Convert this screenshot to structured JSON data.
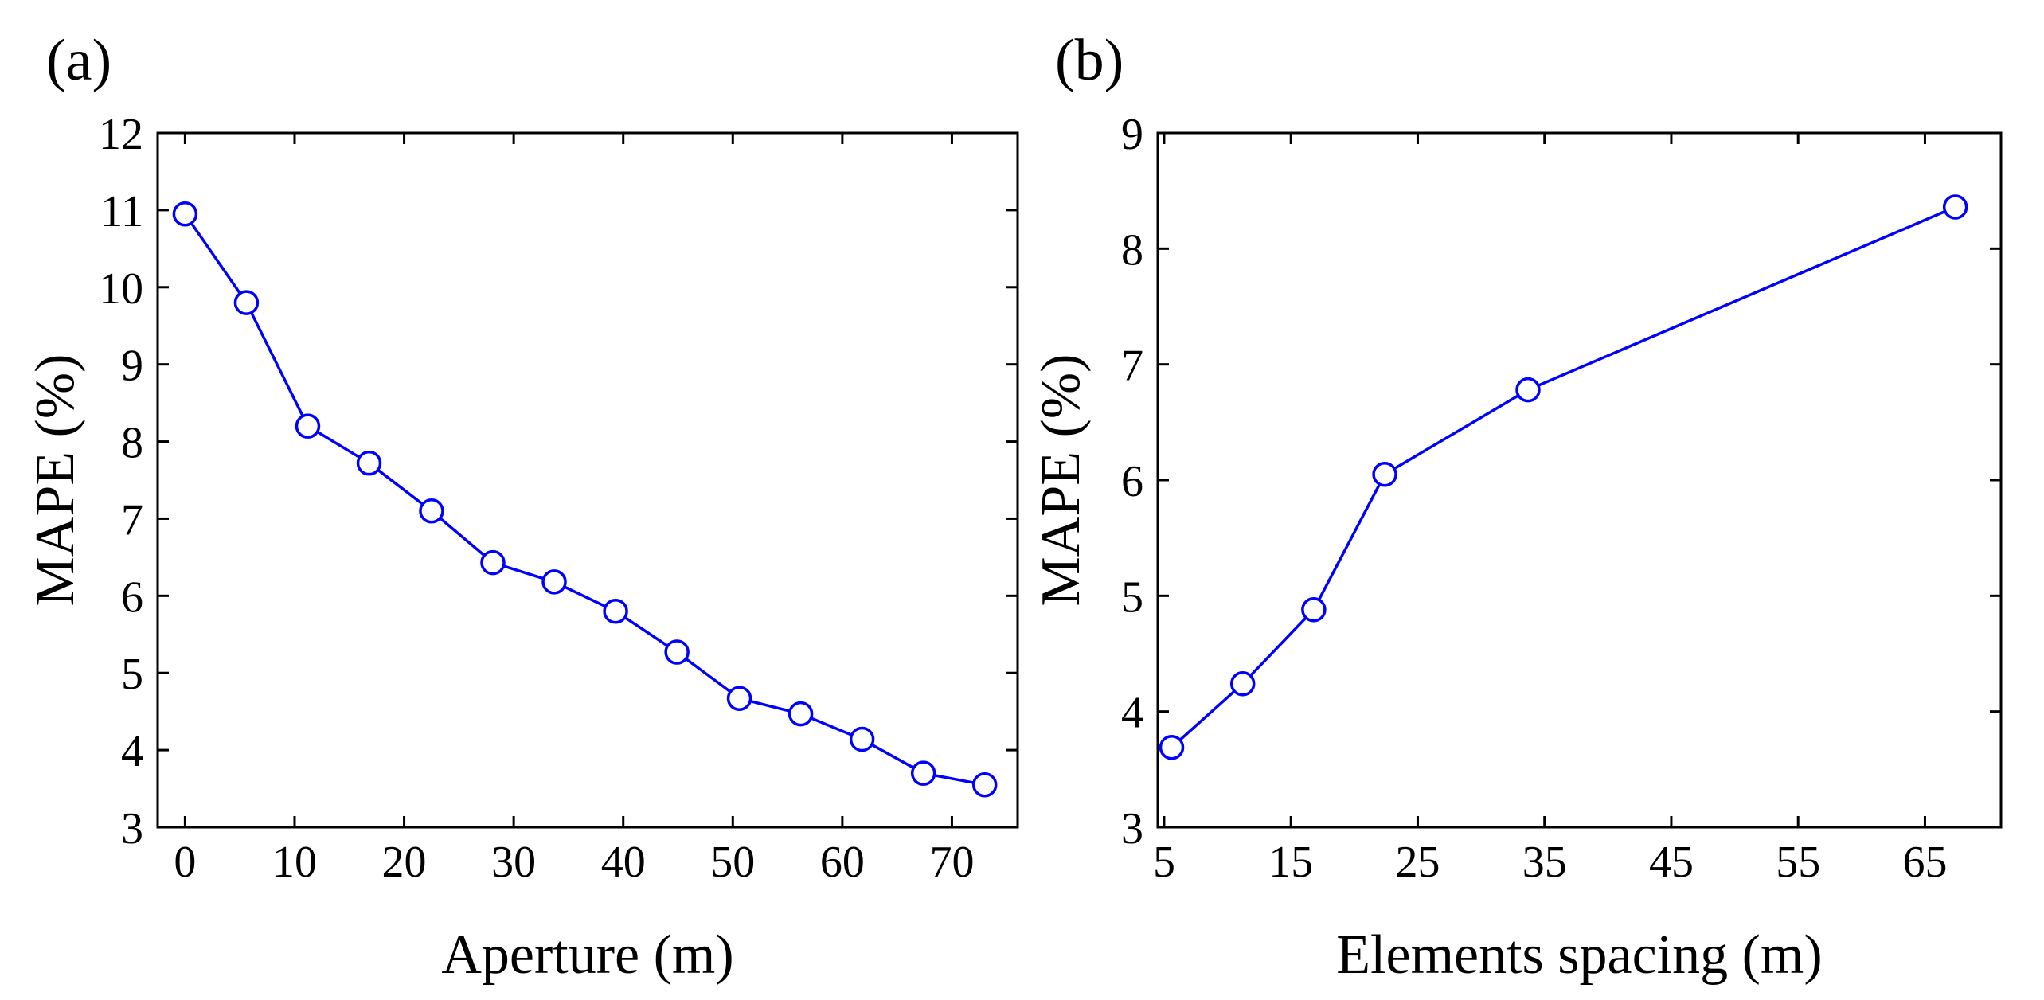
{
  "colors": {
    "series": "#0000ff",
    "axis": "#000000",
    "background": "#ffffff"
  },
  "chart_data": [
    {
      "type": "line",
      "panel_label": "(a)",
      "title": "",
      "xlabel": "Aperture (m)",
      "ylabel": "MAPE (%)",
      "xlim": [
        -2.5,
        76
      ],
      "ylim": [
        3,
        12
      ],
      "xticks": [
        0,
        10,
        20,
        30,
        40,
        50,
        60,
        70
      ],
      "yticks": [
        3,
        4,
        5,
        6,
        7,
        8,
        9,
        10,
        11,
        12
      ],
      "marker": "open-circle",
      "series": [
        {
          "name": "MAPE",
          "x": [
            0,
            5.6,
            11.2,
            16.8,
            22.5,
            28.1,
            33.7,
            39.3,
            44.9,
            50.6,
            56.2,
            61.8,
            67.4,
            73.0
          ],
          "y": [
            10.95,
            9.8,
            8.2,
            7.72,
            7.1,
            6.43,
            6.18,
            5.8,
            5.27,
            4.67,
            4.47,
            4.14,
            3.7,
            3.55
          ]
        }
      ]
    },
    {
      "type": "line",
      "panel_label": "(b)",
      "title": "",
      "xlabel": "Elements spacing (m)",
      "ylabel": "MAPE (%)",
      "xlim": [
        4.5,
        71
      ],
      "ylim": [
        3,
        9
      ],
      "xticks": [
        5,
        15,
        25,
        35,
        45,
        55,
        65
      ],
      "yticks": [
        3,
        4,
        5,
        6,
        7,
        8,
        9
      ],
      "marker": "open-circle",
      "series": [
        {
          "name": "MAPE",
          "x": [
            5.6,
            11.2,
            16.8,
            22.4,
            33.7,
            67.4
          ],
          "y": [
            3.69,
            4.24,
            4.88,
            6.05,
            6.78,
            8.36
          ]
        }
      ]
    }
  ]
}
